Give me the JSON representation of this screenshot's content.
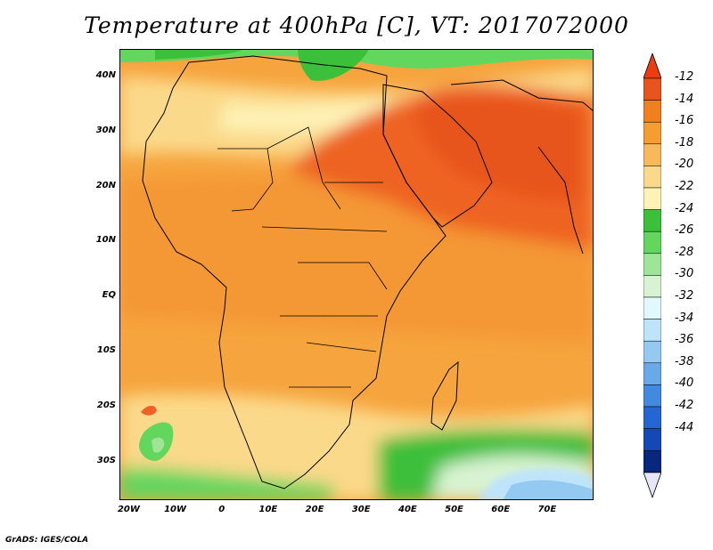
{
  "title": "Temperature at 400hPa [C], VT: 2017072000",
  "credit": "GrADS: IGES/COLA",
  "map": {
    "extent": {
      "lon": [
        -22,
        80
      ],
      "lat": [
        -37,
        45
      ]
    }
  },
  "lat_ticks": [
    {
      "label": "40N",
      "lat": 40
    },
    {
      "label": "30N",
      "lat": 30
    },
    {
      "label": "20N",
      "lat": 20
    },
    {
      "label": "10N",
      "lat": 10
    },
    {
      "label": "EQ",
      "lat": 0
    },
    {
      "label": "10S",
      "lat": -10
    },
    {
      "label": "20S",
      "lat": -20
    },
    {
      "label": "30S",
      "lat": -30
    }
  ],
  "lon_ticks": [
    {
      "label": "20W",
      "lon": -20
    },
    {
      "label": "10W",
      "lon": -10
    },
    {
      "label": "0",
      "lon": 0
    },
    {
      "label": "10E",
      "lon": 10
    },
    {
      "label": "20E",
      "lon": 20
    },
    {
      "label": "30E",
      "lon": 30
    },
    {
      "label": "40E",
      "lon": 40
    },
    {
      "label": "50E",
      "lon": 50
    },
    {
      "label": "60E",
      "lon": 60
    },
    {
      "label": "70E",
      "lon": 70
    }
  ],
  "colorbar": {
    "bins": [
      {
        "color": "#e8541d"
      },
      {
        "color": "#f07f1d"
      },
      {
        "color": "#f49d30"
      },
      {
        "color": "#f8b95a"
      },
      {
        "color": "#fbd98a"
      },
      {
        "color": "#fdf3b6"
      },
      {
        "color": "#3cbf3a"
      },
      {
        "color": "#63d65e"
      },
      {
        "color": "#9ee597"
      },
      {
        "color": "#d8f3d2"
      },
      {
        "color": "#e2f8ff"
      },
      {
        "color": "#bde4fb"
      },
      {
        "color": "#94c9f2"
      },
      {
        "color": "#6aa9e8"
      },
      {
        "color": "#4289e0"
      },
      {
        "color": "#2466d3"
      },
      {
        "color": "#1448b6"
      },
      {
        "color": "#08287f"
      }
    ],
    "labels": [
      "-12",
      "-14",
      "-16",
      "-18",
      "-20",
      "-22",
      "-24",
      "-26",
      "-28",
      "-30",
      "-32",
      "-34",
      "-36",
      "-38",
      "-40",
      "-42",
      "-44"
    ],
    "top_arrow_color": "#ec3d12",
    "bottom_arrow_color": "#e6e6f5"
  }
}
